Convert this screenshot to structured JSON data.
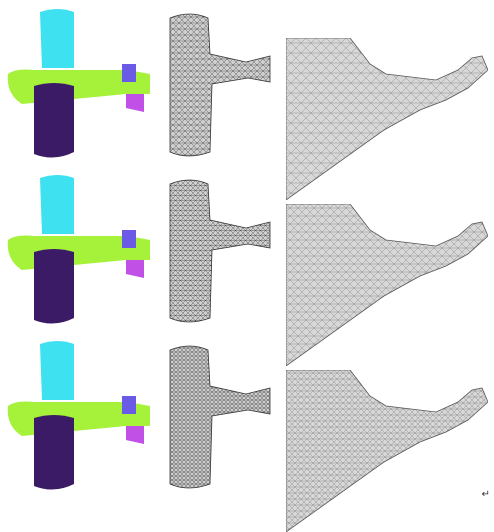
{
  "figure": {
    "rows": [
      {
        "id": "row-1"
      },
      {
        "id": "row-2"
      },
      {
        "id": "row-3"
      }
    ],
    "columns": [
      "segmentation",
      "mesh",
      "mesh-zoom"
    ],
    "colors": {
      "tail_fin": "#3ee1f0",
      "wing": "#a6f23a",
      "body": "#3b1a66",
      "stabilizer_left": "#6a5ae6",
      "stabilizer_right": "#c050e6",
      "mesh_fill": "#cfcfcf",
      "mesh_line": "#333333",
      "zoom_fill": "#d8d8d8",
      "zoom_line": "#8a8a8a"
    }
  },
  "footer": {
    "paragraph_mark": "↵"
  }
}
